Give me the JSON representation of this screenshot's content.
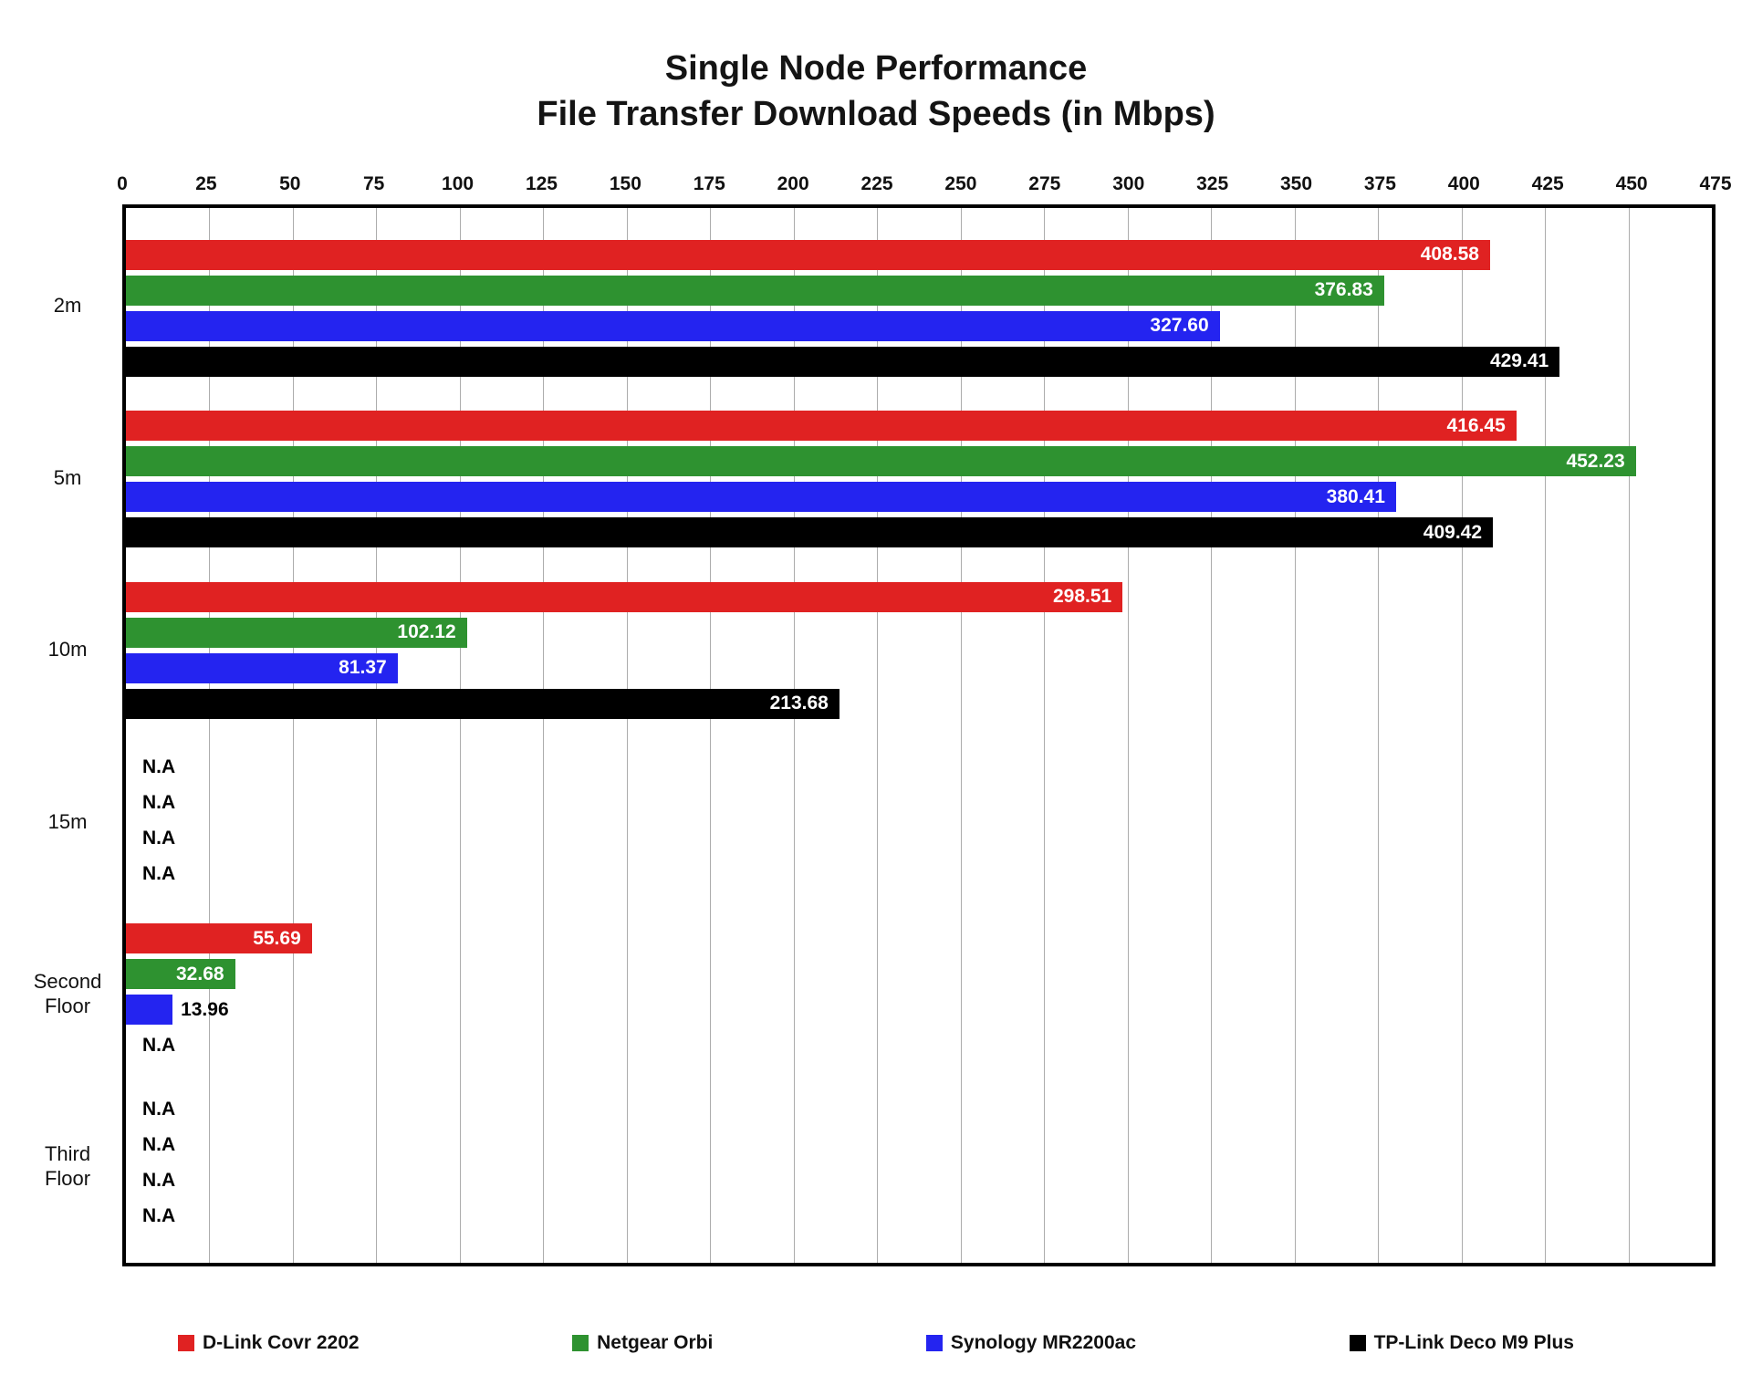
{
  "chart_data": {
    "type": "bar",
    "orientation": "horizontal",
    "title": "Single Node Performance",
    "subtitle": "File Transfer Download Speeds (in Mbps)",
    "xlabel": "",
    "ylabel": "",
    "xlim": [
      0,
      475
    ],
    "xticks": [
      0,
      25,
      50,
      75,
      100,
      125,
      150,
      175,
      200,
      225,
      250,
      275,
      300,
      325,
      350,
      375,
      400,
      425,
      450,
      475
    ],
    "grid": true,
    "axis_position": "top",
    "legend_position": "bottom",
    "na_label": "N.A",
    "categories": [
      "2m",
      "5m",
      "10m",
      "15m",
      "Second Floor",
      "Third Floor"
    ],
    "series": [
      {
        "name": "D-Link Covr 2202",
        "color": "#e02222",
        "values": [
          408.58,
          416.45,
          298.51,
          null,
          55.69,
          null
        ],
        "labels": [
          "408.58",
          "416.45",
          "298.51",
          "N.A",
          "55.69",
          "N.A"
        ]
      },
      {
        "name": "Netgear Orbi",
        "color": "#2e9230",
        "values": [
          376.83,
          452.23,
          102.12,
          null,
          32.68,
          null
        ],
        "labels": [
          "376.83",
          "452.23",
          "102.12",
          "N.A",
          "32.68",
          "N.A"
        ]
      },
      {
        "name": "Synology MR2200ac",
        "color": "#2424f0",
        "values": [
          327.6,
          380.41,
          81.37,
          null,
          13.96,
          null
        ],
        "labels": [
          "327.60",
          "380.41",
          "81.37",
          "N.A",
          "13.96",
          "N.A"
        ]
      },
      {
        "name": "TP-Link Deco M9 Plus",
        "color": "#000000",
        "values": [
          429.41,
          409.42,
          213.68,
          null,
          null,
          null
        ],
        "labels": [
          "429.41",
          "409.42",
          "213.68",
          "N.A",
          "N.A",
          "N.A"
        ]
      }
    ]
  }
}
